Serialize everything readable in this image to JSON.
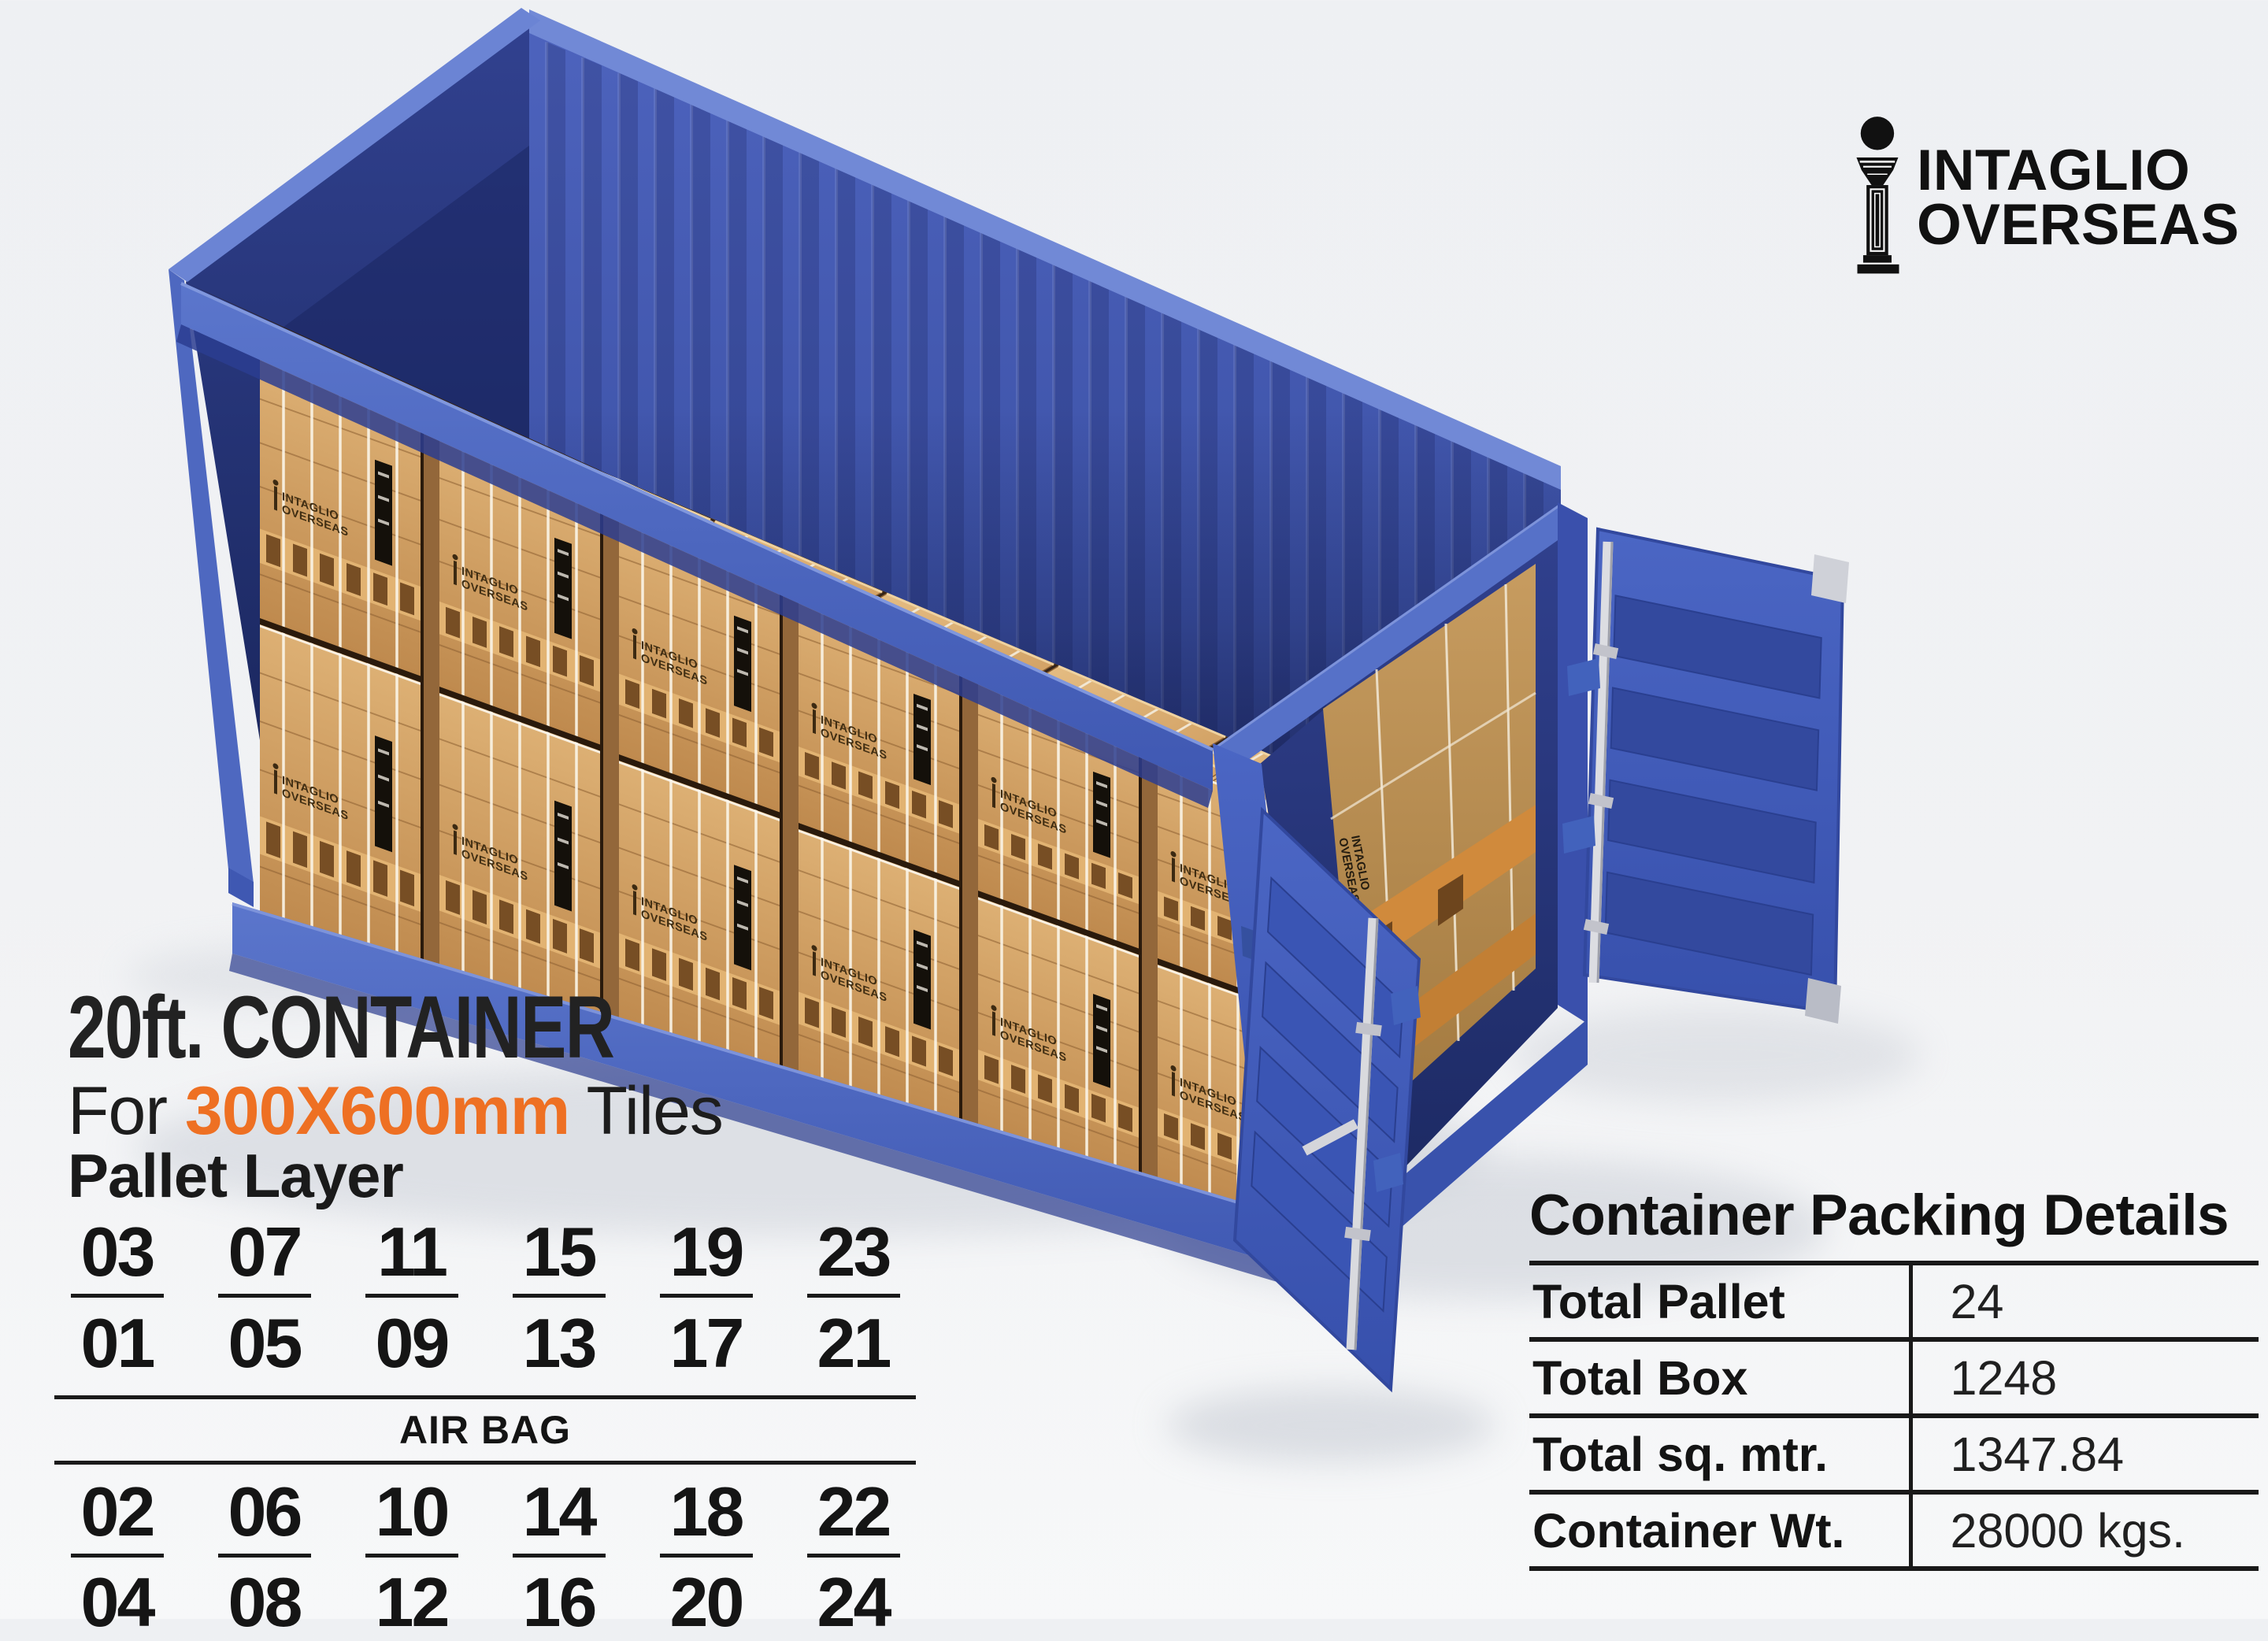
{
  "logo": {
    "line1": "INTAGLIO",
    "line2": "OVERSEAS",
    "icon": "pillar-column-i"
  },
  "title": {
    "main": "20ft. CONTAINER",
    "sub_prefix": "For ",
    "sub_size": "300X600mm",
    "sub_suffix": " Tiles",
    "section": "Pallet Layer"
  },
  "pallet_layer": {
    "row_top": [
      "03",
      "07",
      "11",
      "15",
      "19",
      "23"
    ],
    "row_upper": [
      "01",
      "05",
      "09",
      "13",
      "17",
      "21"
    ],
    "divider": "AIR BAG",
    "row_lower": [
      "02",
      "06",
      "10",
      "14",
      "18",
      "22"
    ],
    "row_bottom": [
      "04",
      "08",
      "12",
      "16",
      "20",
      "24"
    ]
  },
  "packing_table": {
    "title": "Container Packing Details",
    "rows": [
      {
        "label": "Total Pallet",
        "value": "24"
      },
      {
        "label": "Total Box",
        "value": "1248"
      },
      {
        "label": "Total sq. mtr.",
        "value": "1347.84"
      },
      {
        "label": "Container Wt.",
        "value": "28000 kgs."
      }
    ]
  },
  "crate_label": {
    "line1": "INTAGLIO",
    "line2": "OVERSEAS"
  },
  "colors": {
    "accent_orange": "#ee7023",
    "container_blue": "#4565c2",
    "container_blue_dark": "#2b3a88",
    "door_blue": "#3f5cb8",
    "wood": "#cfa05e",
    "wood_light": "#e2b97e",
    "pallet_orange": "#d08a3c",
    "strap_white": "#f3ead8",
    "ink": "#1b1b1b",
    "background": "#f0f1f3"
  }
}
